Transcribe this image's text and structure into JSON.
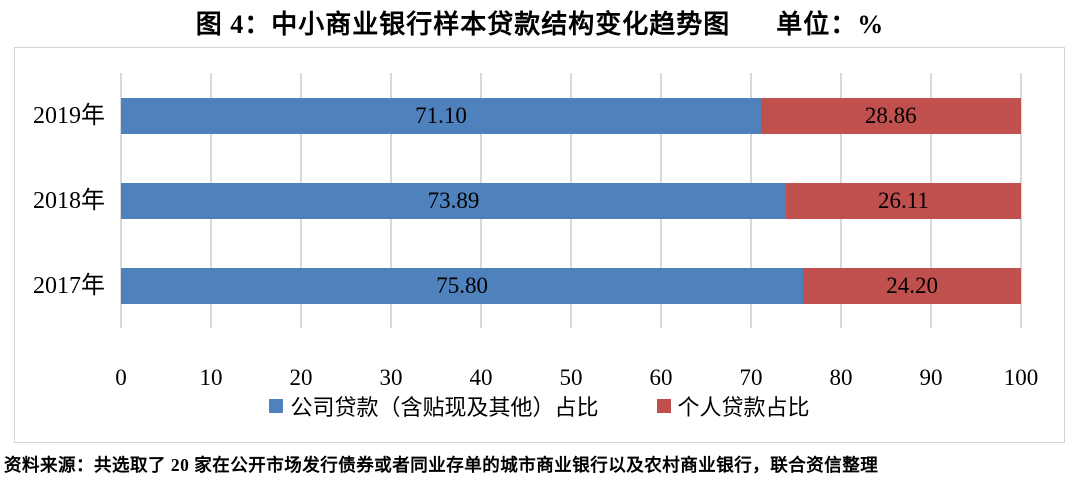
{
  "title": {
    "text": "图 4：中小商业银行样本贷款结构变化趋势图",
    "unit": "单位：%"
  },
  "chart_data": {
    "type": "bar",
    "orientation": "horizontal-stacked",
    "title": "图 4：中小商业银行样本贷款结构变化趋势图",
    "unit_label": "单位：%",
    "categories": [
      "2019年",
      "2018年",
      "2017年"
    ],
    "series": [
      {
        "name": "公司贷款（含贴现及其他）占比",
        "color": "#4F81BD",
        "values": [
          71.1,
          73.89,
          75.8
        ]
      },
      {
        "name": "个人贷款占比",
        "color": "#C0504D",
        "values": [
          28.86,
          26.11,
          24.2
        ]
      }
    ],
    "xlim": [
      0,
      100
    ],
    "xticks": [
      0,
      10,
      20,
      30,
      40,
      50,
      60,
      70,
      80,
      90,
      100
    ],
    "grid": "vertical",
    "gridline_color": "#d9d9d9",
    "legend_position": "bottom",
    "value_decimals": 2
  },
  "footer": {
    "text": "资料来源：共选取了 20 家在公开市场发行债券或者同业存单的城市商业银行以及农村商业银行，联合资信整理"
  }
}
